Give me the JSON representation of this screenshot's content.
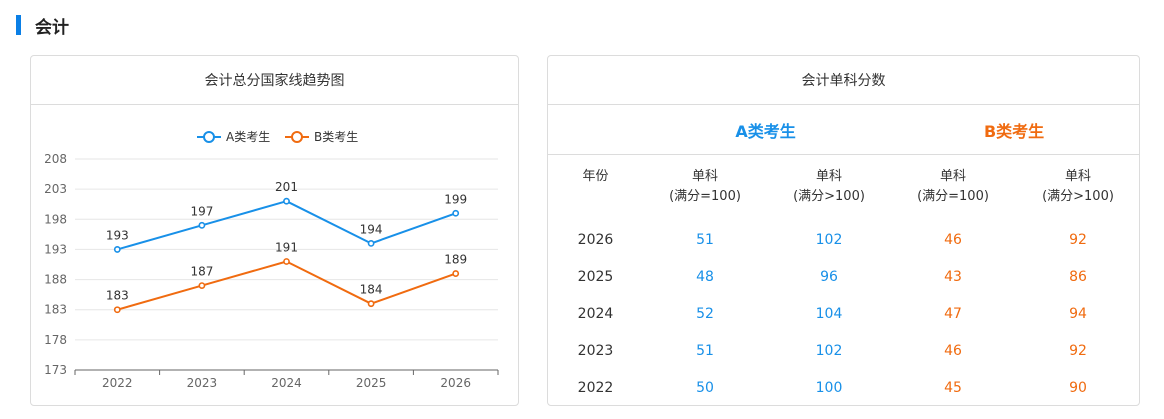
{
  "section": {
    "title": "会计"
  },
  "left_card": {
    "title": "会计总分国家线趋势图"
  },
  "right_card": {
    "title": "会计单科分数",
    "group_a": "A类考生",
    "group_b": "B类考生",
    "headers": {
      "year": "年份",
      "a_single_100": [
        "单科",
        "(满分=100)"
      ],
      "a_single_over": [
        "单科",
        "(满分>100)"
      ],
      "b_single_100": [
        "单科",
        "(满分=100)"
      ],
      "b_single_over": [
        "单科",
        "(满分>100)"
      ]
    },
    "rows": [
      {
        "year": "2026",
        "a100": "51",
        "aover": "102",
        "b100": "46",
        "bover": "92"
      },
      {
        "year": "2025",
        "a100": "48",
        "aover": "96",
        "b100": "43",
        "bover": "86"
      },
      {
        "year": "2024",
        "a100": "52",
        "aover": "104",
        "b100": "47",
        "bover": "94"
      },
      {
        "year": "2023",
        "a100": "51",
        "aover": "102",
        "b100": "46",
        "bover": "92"
      },
      {
        "year": "2022",
        "a100": "50",
        "aover": "100",
        "b100": "45",
        "bover": "90"
      }
    ]
  },
  "chart_data": {
    "type": "line",
    "categories": [
      "2022",
      "2023",
      "2024",
      "2025",
      "2026"
    ],
    "series": [
      {
        "name": "A类考生",
        "color": "#1890e8",
        "values": [
          193,
          197,
          201,
          194,
          199
        ]
      },
      {
        "name": "B类考生",
        "color": "#f06b10",
        "values": [
          183,
          187,
          191,
          184,
          189
        ]
      }
    ],
    "ylim": [
      173,
      208
    ],
    "yticks": [
      173,
      178,
      183,
      188,
      193,
      198,
      203,
      208
    ],
    "grid": true,
    "legend": "top-center"
  }
}
